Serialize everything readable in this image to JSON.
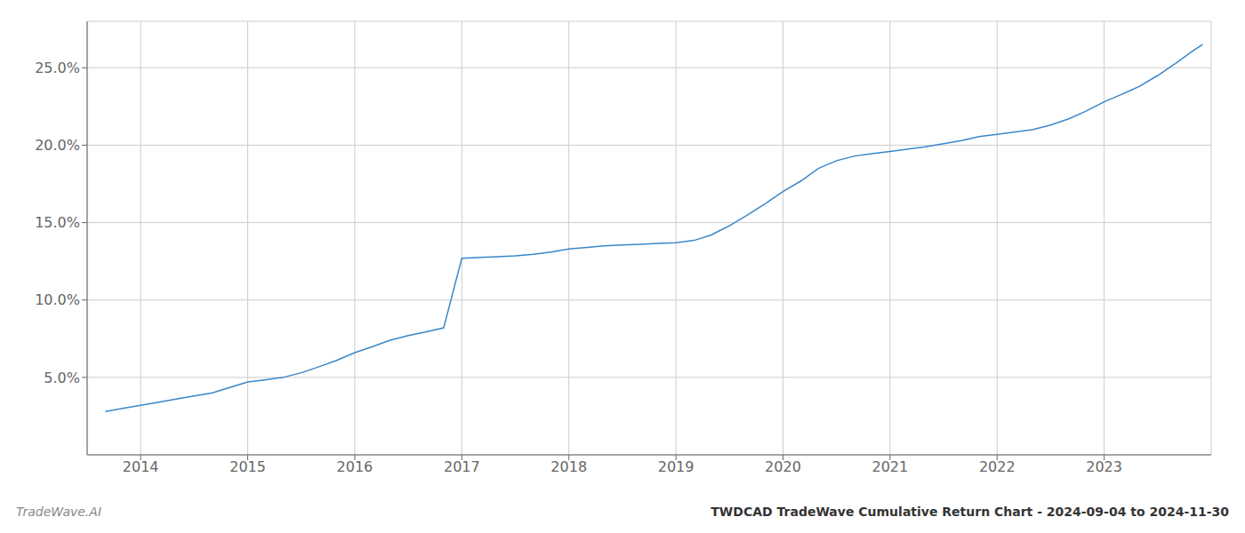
{
  "chart_data": {
    "type": "line",
    "title": "TWDCAD TradeWave Cumulative Return Chart - 2024-09-04 to 2024-11-30",
    "annotations": [
      "TradeWave.AI"
    ],
    "color": "#3a87c8",
    "grid": true,
    "x": [
      2013.67,
      2013.83,
      2014.0,
      2014.17,
      2014.33,
      2014.5,
      2014.67,
      2014.83,
      2015.0,
      2015.17,
      2015.33,
      2015.5,
      2015.67,
      2015.83,
      2016.0,
      2016.17,
      2016.33,
      2016.5,
      2016.67,
      2016.83,
      2017.0,
      2017.17,
      2017.33,
      2017.5,
      2017.67,
      2017.83,
      2018.0,
      2018.17,
      2018.33,
      2018.5,
      2018.67,
      2018.83,
      2019.0,
      2019.17,
      2019.33,
      2019.5,
      2019.67,
      2019.83,
      2020.0,
      2020.17,
      2020.33,
      2020.5,
      2020.67,
      2020.83,
      2021.0,
      2021.17,
      2021.33,
      2021.5,
      2021.67,
      2021.83,
      2022.0,
      2022.17,
      2022.33,
      2022.5,
      2022.67,
      2022.83,
      2023.0,
      2023.17,
      2023.33,
      2023.5,
      2023.67,
      2023.83,
      2023.92
    ],
    "values": [
      2.8,
      3.0,
      3.2,
      3.4,
      3.6,
      3.8,
      4.0,
      4.35,
      4.7,
      4.85,
      5.0,
      5.3,
      5.7,
      6.1,
      6.6,
      7.0,
      7.4,
      7.7,
      7.95,
      8.2,
      12.7,
      12.75,
      12.8,
      12.85,
      12.95,
      13.1,
      13.3,
      13.4,
      13.5,
      13.55,
      13.6,
      13.65,
      13.7,
      13.85,
      14.2,
      14.8,
      15.5,
      16.2,
      17.0,
      17.7,
      18.5,
      19.0,
      19.3,
      19.45,
      19.6,
      19.75,
      19.9,
      20.1,
      20.3,
      20.55,
      20.7,
      20.85,
      21.0,
      21.3,
      21.7,
      22.2,
      22.8,
      23.3,
      23.8,
      24.5,
      25.3,
      26.1,
      26.5
    ],
    "xlim": [
      2013.5,
      2024.0
    ],
    "xticks": [
      2014,
      2015,
      2016,
      2017,
      2018,
      2019,
      2020,
      2021,
      2022,
      2023
    ],
    "ylim": [
      0,
      28
    ],
    "yticks": [
      {
        "value": 5.0,
        "label": "5.0%"
      },
      {
        "value": 10.0,
        "label": "10.0%"
      },
      {
        "value": 15.0,
        "label": "15.0%"
      },
      {
        "value": 20.0,
        "label": "20.0%"
      },
      {
        "value": 25.0,
        "label": "25.0%"
      }
    ]
  }
}
